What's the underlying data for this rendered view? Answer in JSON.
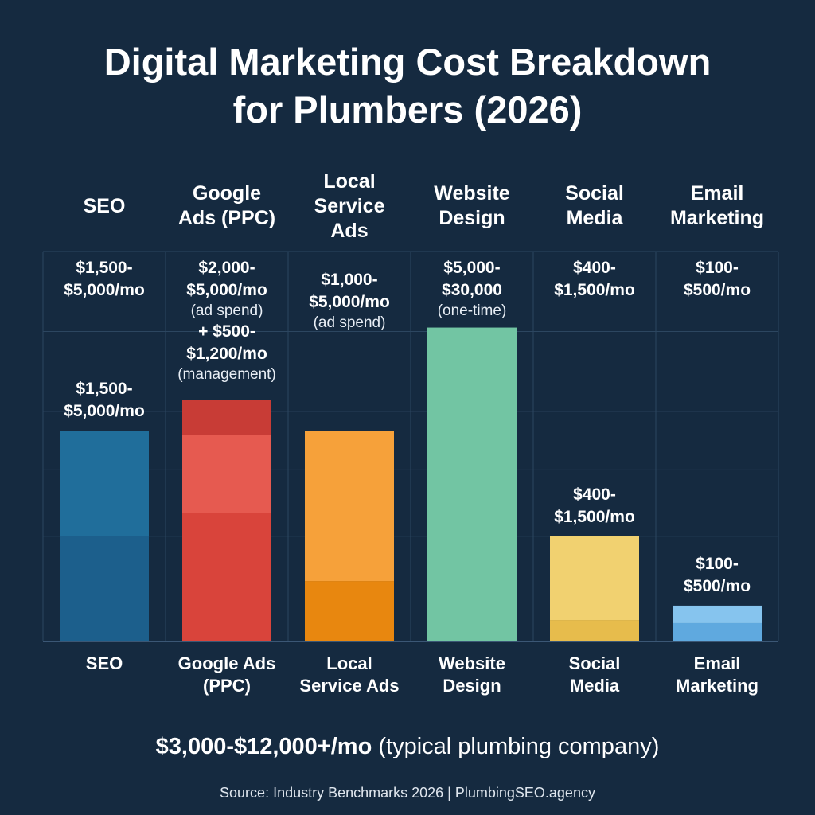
{
  "title_line1": "Digital Marketing Cost Breakdown",
  "title_line2": "for Plumbers (2026)",
  "summary_bold": "$3,000-$12,000+/mo",
  "summary_rest": " (typical plumbing company)",
  "source": "Source: Industry Benchmarks 2026 | PlumbingSEO.agency",
  "chart_data": {
    "type": "bar",
    "title": "Digital Marketing Cost Breakdown for Plumbers (2026)",
    "xlabel": "",
    "ylabel": "",
    "grid": true,
    "legend": "none",
    "categories": [
      {
        "header": [
          "SEO"
        ],
        "footer": [
          "SEO"
        ],
        "top_label": [
          "$1,500-",
          "$5,000/mo"
        ],
        "top_notes": [],
        "bar_label": [
          "$1,500-",
          "$5,000/mo"
        ],
        "range_low": 1500,
        "range_high": 5000,
        "unit": "per month",
        "bar_value": 0.54,
        "segments": [
          {
            "value": 0.27,
            "color": "#1c5f8c"
          },
          {
            "value": 0.27,
            "color": "#206e9b"
          }
        ]
      },
      {
        "header": [
          "Google",
          "Ads (PPC)"
        ],
        "footer": [
          "Google Ads",
          "(PPC)"
        ],
        "top_label": [
          "$2,000-",
          "$5,000/mo"
        ],
        "top_notes": [
          "(ad spend)",
          "+ $500-",
          "$1,200/mo",
          "(management)"
        ],
        "bar_label": [],
        "range_low": 2000,
        "range_high": 5000,
        "unit": "per month ad spend",
        "extra_low": 500,
        "extra_high": 1200,
        "extra_unit": "per month management",
        "bar_value": 0.62,
        "segments": [
          {
            "value": 0.33,
            "color": "#d9443b"
          },
          {
            "value": 0.2,
            "color": "#e65a50"
          },
          {
            "value": 0.09,
            "color": "#c83c36"
          }
        ]
      },
      {
        "header": [
          "Local",
          "Service",
          "Ads"
        ],
        "footer": [
          "Local",
          "Service Ads"
        ],
        "top_label": [
          "$1,000-",
          "$5,000/mo"
        ],
        "top_notes": [
          "(ad spend)"
        ],
        "bar_label": [],
        "range_low": 1000,
        "range_high": 5000,
        "unit": "per month ad spend",
        "bar_value": 0.54,
        "segments": [
          {
            "value": 0.155,
            "color": "#e8870f"
          },
          {
            "value": 0.385,
            "color": "#f6a13a"
          }
        ]
      },
      {
        "header": [
          "Website",
          "Design"
        ],
        "footer": [
          "Website",
          "Design"
        ],
        "top_label": [
          "$5,000-",
          "$30,000"
        ],
        "top_notes": [
          "(one-time)"
        ],
        "bar_label": [],
        "range_low": 5000,
        "range_high": 30000,
        "unit": "one-time",
        "bar_value": 0.805,
        "segments": [
          {
            "value": 0.805,
            "color": "#72c5a3"
          }
        ]
      },
      {
        "header": [
          "Social",
          "Media"
        ],
        "footer": [
          "Social",
          "Media"
        ],
        "top_label": [
          "$400-",
          "$1,500/mo"
        ],
        "top_notes": [],
        "bar_label": [
          "$400-",
          "$1,500/mo"
        ],
        "range_low": 400,
        "range_high": 1500,
        "unit": "per month",
        "bar_value": 0.27,
        "segments": [
          {
            "value": 0.055,
            "color": "#e7bc4c"
          },
          {
            "value": 0.215,
            "color": "#f1d170"
          }
        ]
      },
      {
        "header": [
          "Email",
          "Marketing"
        ],
        "footer": [
          "Email",
          "Marketing"
        ],
        "top_label": [
          "$100-",
          "$500/mo"
        ],
        "top_notes": [],
        "bar_label": [
          "$100-",
          "$500/mo"
        ],
        "range_low": 100,
        "range_high": 500,
        "unit": "per month",
        "bar_value": 0.092,
        "segments": [
          {
            "value": 0.047,
            "color": "#5fa9df"
          },
          {
            "value": 0.045,
            "color": "#86c4ee"
          }
        ]
      }
    ],
    "colors": {
      "background": "#152a40",
      "grid": "#2c4660",
      "text": "#ffffff"
    }
  }
}
